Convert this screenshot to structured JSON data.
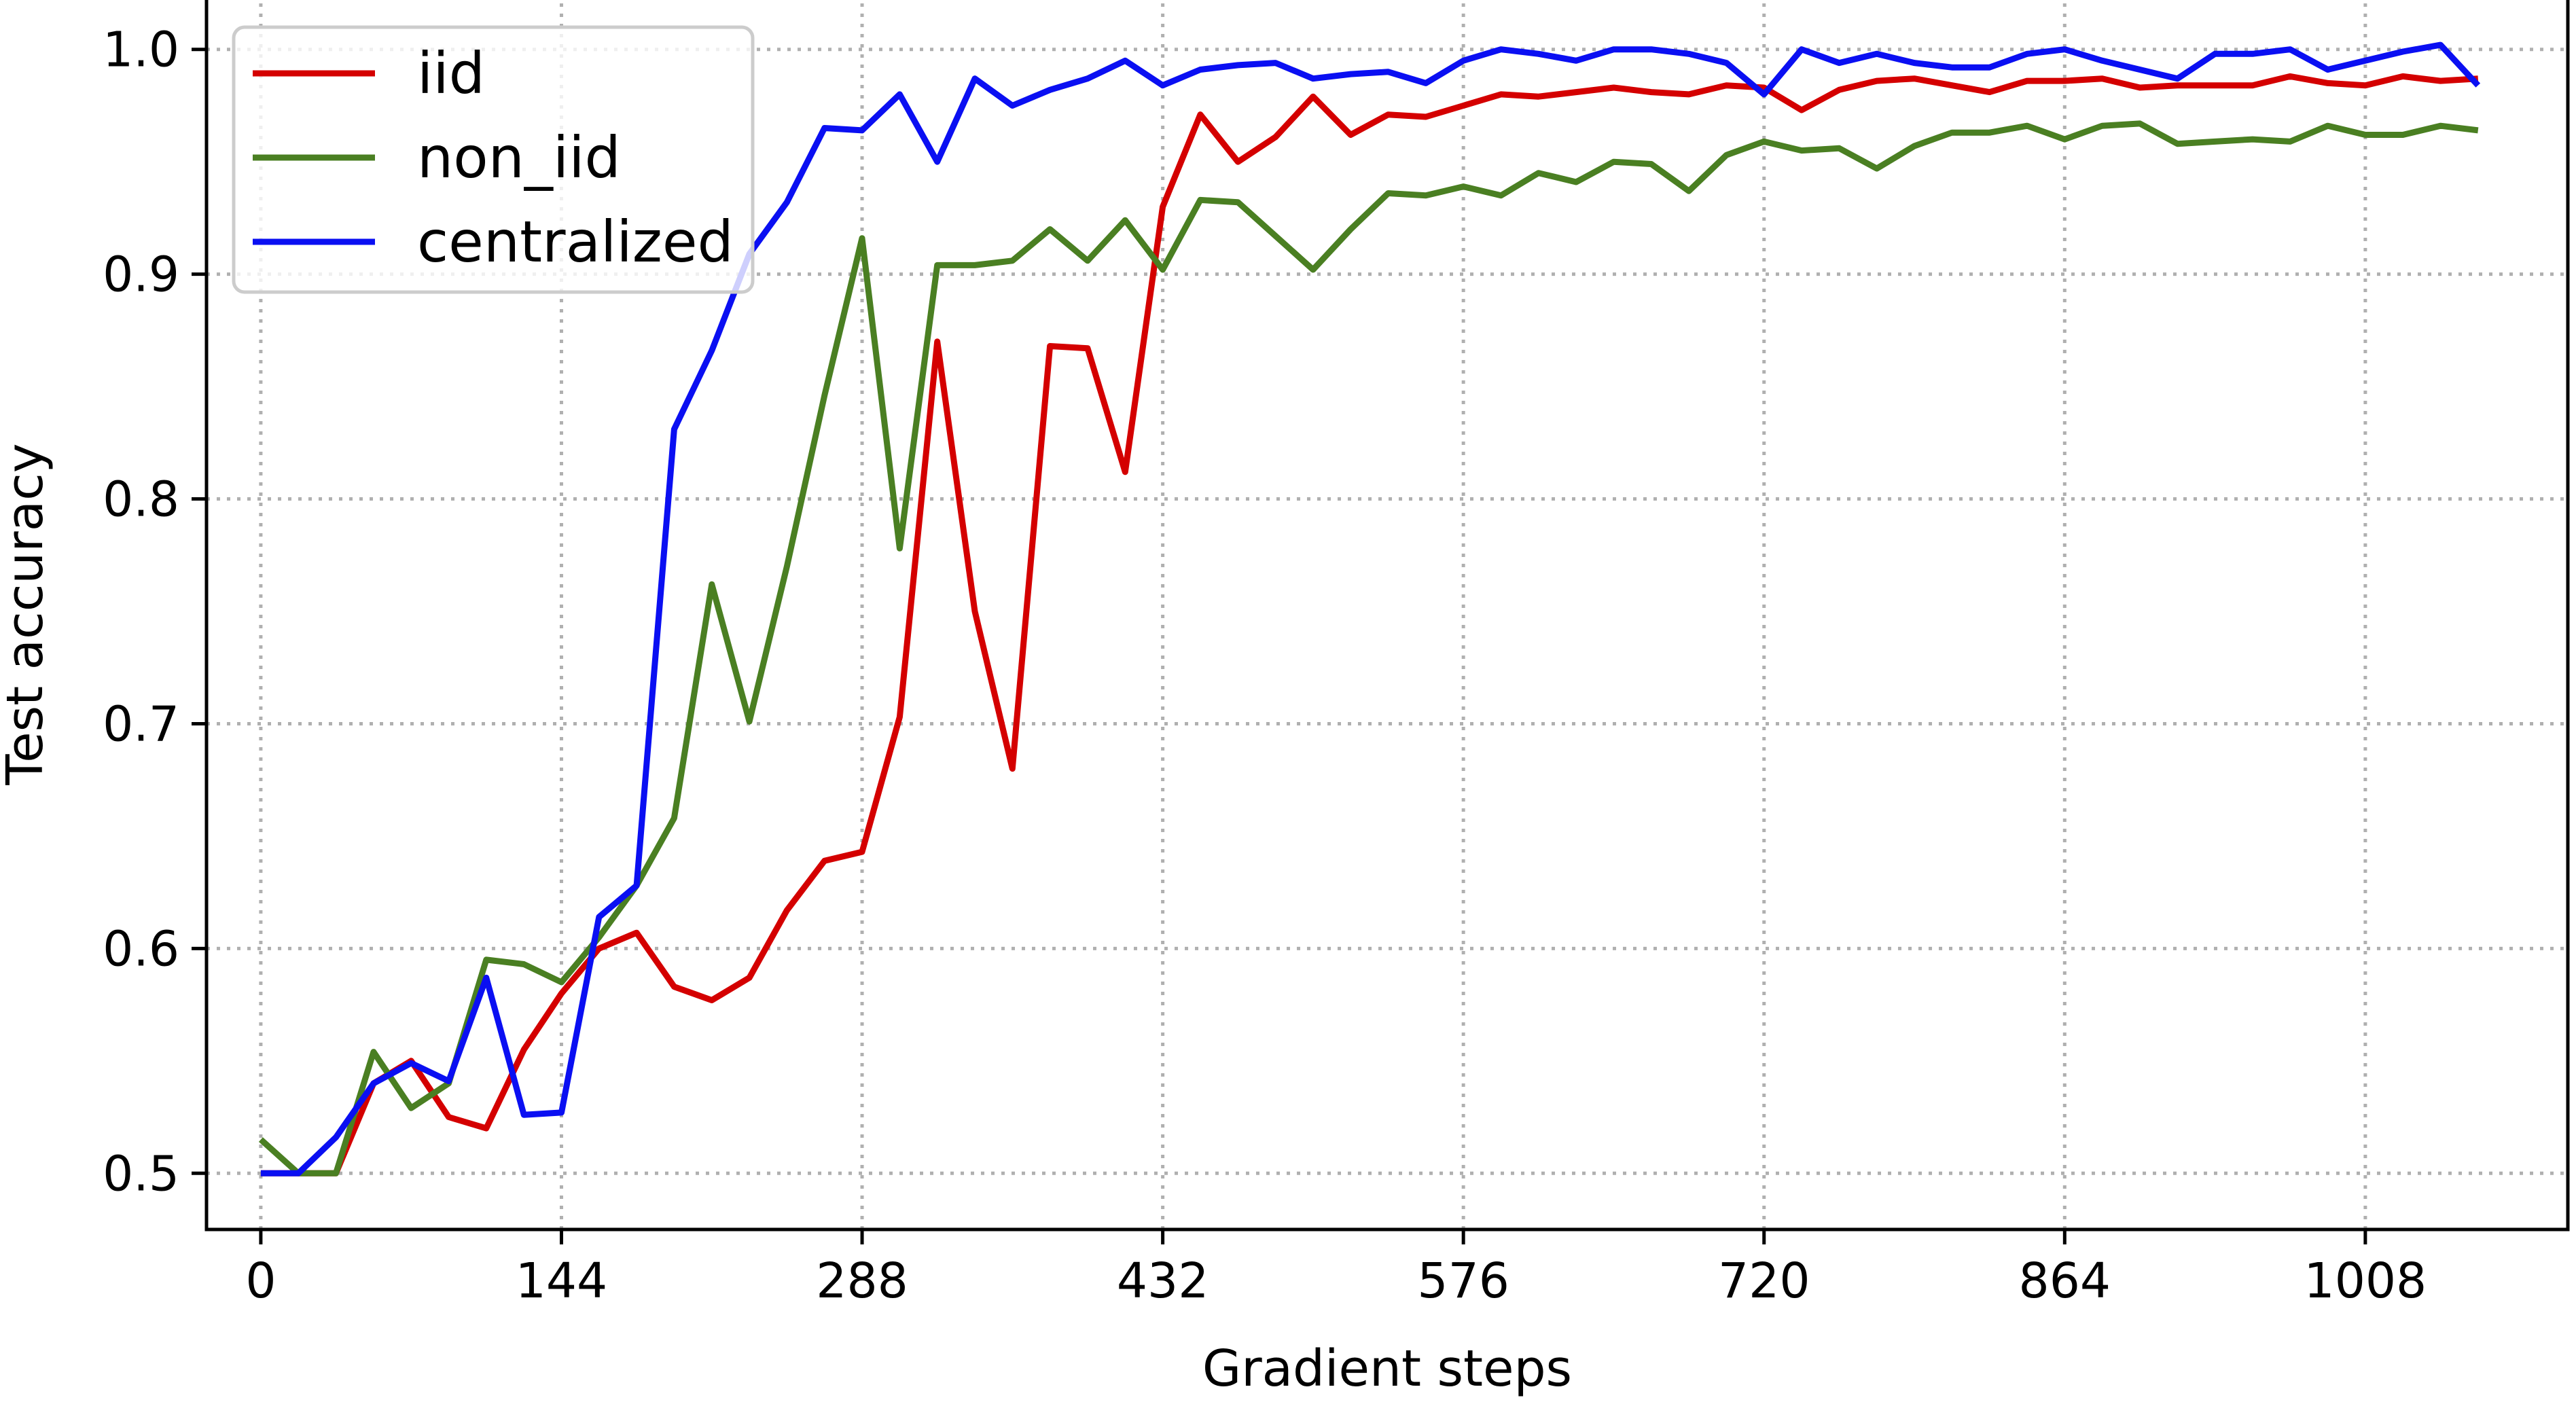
{
  "chart_data": {
    "type": "line",
    "xlabel": "Gradient steps",
    "ylabel": "Test accuracy",
    "xlim": [
      -26,
      1105
    ],
    "ylim": [
      0.475,
      1.025
    ],
    "xticks": [
      0,
      144,
      288,
      432,
      576,
      720,
      864,
      1008
    ],
    "yticks": [
      0.5,
      0.6,
      0.7,
      0.8,
      0.9,
      1.0
    ],
    "ytick_labels": [
      "0.5",
      "0.6",
      "0.7",
      "0.8",
      "0.9",
      "1.0"
    ],
    "grid": true,
    "legend_position": "top-left",
    "x": [
      0,
      18,
      36,
      54,
      72,
      90,
      108,
      126,
      144,
      162,
      180,
      198,
      216,
      234,
      252,
      270,
      288,
      306,
      324,
      342,
      360,
      378,
      396,
      414,
      432,
      450,
      468,
      486,
      504,
      522,
      540,
      558,
      576,
      594,
      612,
      630,
      648,
      666,
      684,
      702,
      720,
      738,
      756,
      774,
      792,
      810,
      828,
      846,
      864,
      882,
      900,
      918,
      936,
      954,
      972,
      990,
      1008,
      1026,
      1044,
      1062
    ],
    "series": [
      {
        "name": "iid",
        "color": "#d40000",
        "values": [
          0.5,
          0.5,
          0.5,
          0.54,
          0.55,
          0.525,
          0.52,
          0.555,
          0.58,
          0.6,
          0.607,
          0.583,
          0.577,
          0.587,
          0.617,
          0.639,
          0.643,
          0.703,
          0.87,
          0.75,
          0.68,
          0.868,
          0.867,
          0.812,
          0.93,
          0.971,
          0.95,
          0.961,
          0.979,
          0.962,
          0.971,
          0.97,
          0.975,
          0.98,
          0.979,
          0.981,
          0.983,
          0.981,
          0.98,
          0.984,
          0.983,
          0.973,
          0.982,
          0.986,
          0.987,
          0.984,
          0.981,
          0.986,
          0.986,
          0.987,
          0.983,
          0.984,
          0.984,
          0.984,
          0.988,
          0.985,
          0.984,
          0.988,
          0.986,
          0.987
        ]
      },
      {
        "name": "non_iid",
        "color": "#4a7f22",
        "values": [
          0.515,
          0.5,
          0.5,
          0.554,
          0.529,
          0.54,
          0.595,
          0.593,
          0.585,
          0.605,
          0.628,
          0.658,
          0.762,
          0.701,
          0.77,
          0.846,
          0.916,
          0.778,
          0.904,
          0.904,
          0.906,
          0.92,
          0.906,
          0.924,
          0.902,
          0.933,
          0.932,
          0.917,
          0.902,
          0.92,
          0.936,
          0.935,
          0.939,
          0.935,
          0.945,
          0.941,
          0.95,
          0.949,
          0.937,
          0.953,
          0.959,
          0.955,
          0.956,
          0.947,
          0.957,
          0.963,
          0.963,
          0.966,
          0.96,
          0.966,
          0.967,
          0.958,
          0.959,
          0.96,
          0.959,
          0.966,
          0.962,
          0.962,
          0.966,
          0.964
        ]
      },
      {
        "name": "centralized",
        "color": "#0a0ff2",
        "values": [
          0.5,
          0.5,
          0.516,
          0.54,
          0.549,
          0.541,
          0.587,
          0.526,
          0.527,
          0.614,
          0.628,
          0.831,
          0.866,
          0.909,
          0.932,
          0.965,
          0.964,
          0.98,
          0.95,
          0.987,
          0.975,
          0.982,
          0.987,
          0.995,
          0.984,
          0.991,
          0.993,
          0.994,
          0.987,
          0.989,
          0.99,
          0.985,
          0.995,
          1.0,
          0.998,
          0.995,
          1.0,
          1.0,
          0.998,
          0.994,
          0.98,
          1.0,
          0.994,
          0.998,
          0.994,
          0.992,
          0.992,
          0.998,
          1.0,
          0.995,
          0.991,
          0.987,
          0.998,
          0.998,
          1.0,
          0.991,
          0.995,
          0.999,
          1.002,
          0.984
        ]
      }
    ]
  }
}
